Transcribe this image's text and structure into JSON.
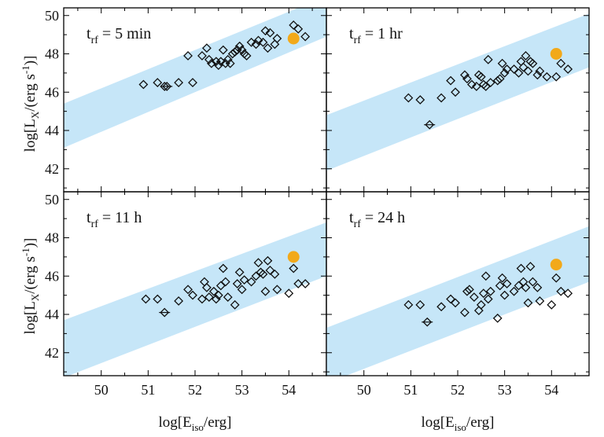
{
  "colors": {
    "band": "#c6e6f8",
    "marker": "#111111",
    "highlight": "#f2a91a",
    "axis": "#000000"
  },
  "axis_labels": {
    "x_main": "log[E",
    "x_sub": "iso",
    "x_tail": "/erg]",
    "y_main": "log[L",
    "y_sub": "X",
    "y_mid": "/(erg s",
    "y_sup": "-1",
    "y_tail": ")]"
  },
  "chart_data": [
    {
      "type": "scatter",
      "panel": "top-left",
      "annotation": {
        "prefix": "t",
        "sub": "rf",
        "rest": " = 5 min"
      },
      "xlim": [
        49.2,
        54.8
      ],
      "ylim": [
        40.8,
        50.4
      ],
      "xticks": [
        50,
        51,
        52,
        53,
        54
      ],
      "yticks": [
        42,
        44,
        46,
        48,
        50
      ],
      "band": {
        "x": [
          49.2,
          54.8
        ],
        "lower": [
          43.1,
          48.9
        ],
        "upper": [
          45.4,
          51.0
        ]
      },
      "highlight": {
        "x": 54.1,
        "y": 48.8
      },
      "points": [
        [
          50.9,
          46.4
        ],
        [
          51.2,
          46.5
        ],
        [
          51.35,
          46.3
        ],
        [
          51.65,
          46.5
        ],
        [
          51.85,
          47.9
        ],
        [
          51.95,
          46.5
        ],
        [
          52.15,
          47.9
        ],
        [
          52.25,
          48.3
        ],
        [
          52.3,
          47.7
        ],
        [
          52.35,
          47.5
        ],
        [
          52.45,
          47.6
        ],
        [
          52.5,
          47.4
        ],
        [
          52.55,
          47.6
        ],
        [
          52.6,
          48.2
        ],
        [
          52.65,
          47.5
        ],
        [
          52.7,
          47.7
        ],
        [
          52.75,
          47.5
        ],
        [
          52.8,
          48.0
        ],
        [
          52.85,
          48.1
        ],
        [
          52.9,
          48.2
        ],
        [
          52.95,
          48.4
        ],
        [
          53.0,
          48.2
        ],
        [
          53.05,
          48.0
        ],
        [
          53.1,
          47.9
        ],
        [
          53.2,
          48.6
        ],
        [
          53.3,
          48.5
        ],
        [
          53.35,
          48.7
        ],
        [
          53.45,
          48.6
        ],
        [
          53.5,
          49.2
        ],
        [
          53.55,
          48.3
        ],
        [
          53.6,
          49.1
        ],
        [
          53.7,
          48.5
        ],
        [
          53.75,
          48.8
        ],
        [
          54.1,
          49.5
        ],
        [
          54.2,
          49.3
        ],
        [
          54.35,
          48.9
        ]
      ],
      "errorbar_points": [
        [
          51.4,
          46.3
        ]
      ]
    },
    {
      "type": "scatter",
      "panel": "top-right",
      "annotation": {
        "prefix": "t",
        "sub": "rf",
        "rest": " = 1 hr"
      },
      "xlim": [
        49.2,
        54.8
      ],
      "ylim": [
        40.8,
        50.4
      ],
      "xticks": [
        50,
        51,
        52,
        53,
        54
      ],
      "yticks": [
        42,
        44,
        46,
        48,
        50
      ],
      "band": {
        "x": [
          49.2,
          54.8
        ],
        "lower": [
          41.9,
          47.3
        ],
        "upper": [
          44.8,
          50.1
        ]
      },
      "highlight": {
        "x": 54.1,
        "y": 48.0
      },
      "points": [
        [
          50.95,
          45.7
        ],
        [
          51.2,
          45.6
        ],
        [
          51.65,
          45.7
        ],
        [
          51.85,
          46.6
        ],
        [
          51.95,
          46.0
        ],
        [
          52.15,
          46.9
        ],
        [
          52.2,
          46.7
        ],
        [
          52.3,
          46.4
        ],
        [
          52.4,
          46.3
        ],
        [
          52.45,
          46.9
        ],
        [
          52.5,
          46.8
        ],
        [
          52.55,
          46.4
        ],
        [
          52.6,
          46.3
        ],
        [
          52.65,
          47.7
        ],
        [
          52.7,
          46.5
        ],
        [
          52.85,
          46.6
        ],
        [
          52.9,
          46.7
        ],
        [
          52.95,
          47.5
        ],
        [
          53.0,
          47.0
        ],
        [
          53.05,
          47.2
        ],
        [
          53.2,
          47.2
        ],
        [
          53.3,
          47.0
        ],
        [
          53.35,
          47.6
        ],
        [
          53.4,
          47.3
        ],
        [
          53.45,
          47.9
        ],
        [
          53.5,
          47.1
        ],
        [
          53.55,
          47.6
        ],
        [
          53.6,
          47.5
        ],
        [
          53.7,
          46.9
        ],
        [
          53.75,
          47.1
        ],
        [
          53.9,
          46.8
        ],
        [
          54.1,
          46.8
        ],
        [
          54.2,
          47.5
        ],
        [
          54.35,
          47.2
        ]
      ],
      "errorbar_points": [
        [
          51.4,
          44.3
        ]
      ]
    },
    {
      "type": "scatter",
      "panel": "bottom-left",
      "annotation": {
        "prefix": "t",
        "sub": "rf",
        "rest": " = 11 h"
      },
      "xlim": [
        49.2,
        54.8
      ],
      "ylim": [
        40.8,
        50.4
      ],
      "xticks": [
        50,
        51,
        52,
        53,
        54
      ],
      "yticks": [
        42,
        44,
        46,
        48,
        50
      ],
      "band": {
        "x": [
          49.2,
          54.8
        ],
        "lower": [
          40.7,
          46.0
        ],
        "upper": [
          43.7,
          48.8
        ]
      },
      "highlight": {
        "x": 54.1,
        "y": 47.0
      },
      "points": [
        [
          50.95,
          44.8
        ],
        [
          51.2,
          44.8
        ],
        [
          51.65,
          44.7
        ],
        [
          51.85,
          45.3
        ],
        [
          51.95,
          45.0
        ],
        [
          52.15,
          44.8
        ],
        [
          52.2,
          45.7
        ],
        [
          52.25,
          45.4
        ],
        [
          52.3,
          44.9
        ],
        [
          52.4,
          45.2
        ],
        [
          52.45,
          44.8
        ],
        [
          52.5,
          45.0
        ],
        [
          52.55,
          45.5
        ],
        [
          52.6,
          46.4
        ],
        [
          52.65,
          45.7
        ],
        [
          52.7,
          44.9
        ],
        [
          52.85,
          44.5
        ],
        [
          52.9,
          45.6
        ],
        [
          52.95,
          46.2
        ],
        [
          53.0,
          45.3
        ],
        [
          53.05,
          45.8
        ],
        [
          53.2,
          45.7
        ],
        [
          53.3,
          46.0
        ],
        [
          53.35,
          46.7
        ],
        [
          53.4,
          46.2
        ],
        [
          53.45,
          46.1
        ],
        [
          53.5,
          45.2
        ],
        [
          53.55,
          46.8
        ],
        [
          53.6,
          46.3
        ],
        [
          53.7,
          46.1
        ],
        [
          53.75,
          45.3
        ],
        [
          54.0,
          45.1
        ],
        [
          54.1,
          46.4
        ],
        [
          54.2,
          45.6
        ],
        [
          54.35,
          45.6
        ]
      ],
      "errorbar_points": [
        [
          51.35,
          44.1
        ]
      ]
    },
    {
      "type": "scatter",
      "panel": "bottom-right",
      "annotation": {
        "prefix": "t",
        "sub": "rf",
        "rest": " = 24 h"
      },
      "xlim": [
        49.2,
        54.8
      ],
      "ylim": [
        40.8,
        50.4
      ],
      "xticks": [
        50,
        51,
        52,
        53,
        54
      ],
      "yticks": [
        42,
        44,
        46,
        48,
        50
      ],
      "band": {
        "x": [
          49.2,
          54.8
        ],
        "lower": [
          40.4,
          45.7
        ],
        "upper": [
          43.3,
          48.6
        ]
      },
      "highlight": {
        "x": 54.1,
        "y": 46.6
      },
      "points": [
        [
          50.95,
          44.5
        ],
        [
          51.2,
          44.5
        ],
        [
          51.65,
          44.4
        ],
        [
          51.85,
          44.8
        ],
        [
          51.95,
          44.6
        ],
        [
          52.15,
          44.1
        ],
        [
          52.2,
          45.2
        ],
        [
          52.25,
          45.3
        ],
        [
          52.35,
          44.9
        ],
        [
          52.45,
          44.2
        ],
        [
          52.5,
          44.5
        ],
        [
          52.55,
          45.1
        ],
        [
          52.6,
          46.0
        ],
        [
          52.65,
          44.8
        ],
        [
          52.7,
          45.2
        ],
        [
          52.85,
          43.8
        ],
        [
          52.9,
          45.5
        ],
        [
          52.95,
          45.9
        ],
        [
          53.0,
          45.0
        ],
        [
          53.05,
          45.6
        ],
        [
          53.2,
          45.2
        ],
        [
          53.3,
          45.5
        ],
        [
          53.35,
          46.4
        ],
        [
          53.4,
          45.7
        ],
        [
          53.45,
          45.4
        ],
        [
          53.5,
          44.6
        ],
        [
          53.55,
          46.5
        ],
        [
          53.6,
          45.7
        ],
        [
          53.7,
          45.4
        ],
        [
          53.75,
          44.7
        ],
        [
          54.0,
          44.5
        ],
        [
          54.1,
          45.9
        ],
        [
          54.2,
          45.2
        ],
        [
          54.35,
          45.1
        ]
      ],
      "errorbar_points": [
        [
          51.35,
          43.6
        ]
      ]
    }
  ]
}
